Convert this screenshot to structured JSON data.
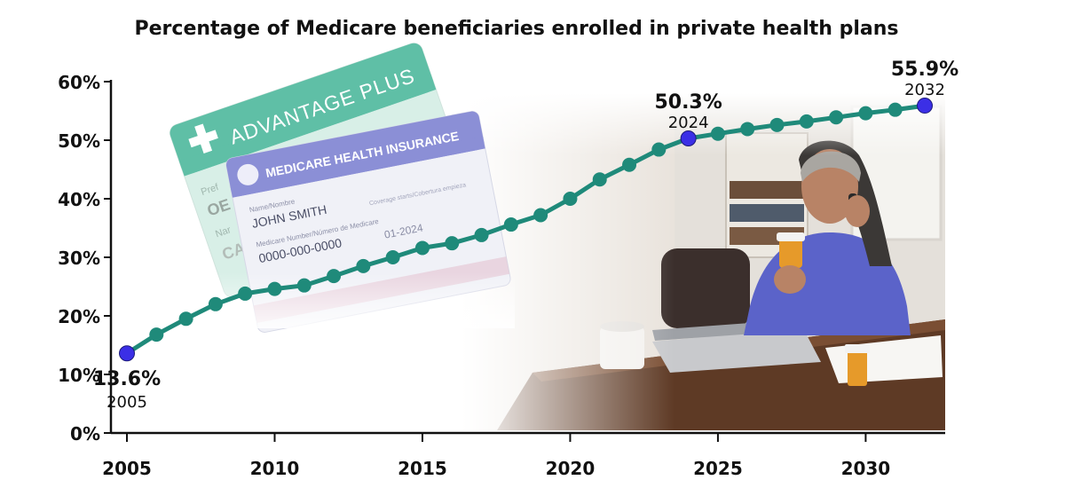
{
  "chart_data": {
    "type": "line",
    "title": "Percentage of Medicare beneficiaries enrolled in private health plans",
    "xlabel": "",
    "ylabel": "",
    "x": [
      2005,
      2006,
      2007,
      2008,
      2009,
      2010,
      2011,
      2012,
      2013,
      2014,
      2015,
      2016,
      2017,
      2018,
      2019,
      2020,
      2021,
      2022,
      2023,
      2024,
      2025,
      2026,
      2027,
      2028,
      2029,
      2030,
      2031,
      2032
    ],
    "values": [
      13.6,
      16.8,
      19.5,
      22.0,
      23.8,
      24.6,
      25.2,
      26.8,
      28.5,
      30.0,
      31.6,
      32.4,
      33.8,
      35.6,
      37.2,
      40.0,
      43.3,
      45.8,
      48.4,
      50.3,
      51.1,
      51.9,
      52.6,
      53.2,
      53.9,
      54.6,
      55.2,
      55.9
    ],
    "xlim": [
      2005,
      2033
    ],
    "ylim": [
      0,
      60
    ],
    "x_ticks": [
      "2005",
      "2010",
      "2015",
      "2020",
      "2025",
      "2030"
    ],
    "y_ticks": [
      "0%",
      "10%",
      "20%",
      "30%",
      "40%",
      "50%",
      "60%"
    ],
    "grid": false,
    "colors": {
      "line": "#1f8a7a",
      "marker": "#1f8a7a",
      "highlight": "#3b2fe6"
    },
    "highlights": [
      {
        "year": 2005,
        "value": 13.6,
        "value_label": "13.6%",
        "year_label": "2005",
        "position": "below"
      },
      {
        "year": 2024,
        "value": 50.3,
        "value_label": "50.3%",
        "year_label": "2024",
        "position": "above"
      },
      {
        "year": 2032,
        "value": 55.9,
        "value_label": "55.9%",
        "year_label": "2032",
        "position": "above"
      }
    ]
  },
  "background": {
    "card_back": {
      "header": "ADVANTAGE PLUS",
      "fragments": [
        "Pref",
        "OE",
        "Nar",
        "CA"
      ]
    },
    "card_front": {
      "header": "MEDICARE HEALTH INSURANCE",
      "name_caption": "Name/Nombre",
      "name": "JOHN SMITH",
      "number_caption": "Medicare Number/Número de Medicare",
      "number": "0000-000-0000",
      "fine_print": "Coverage starts/Cobertura empieza",
      "dates": "01-2024"
    },
    "photo": "woman-on-phone-holding-pill-bottle"
  }
}
